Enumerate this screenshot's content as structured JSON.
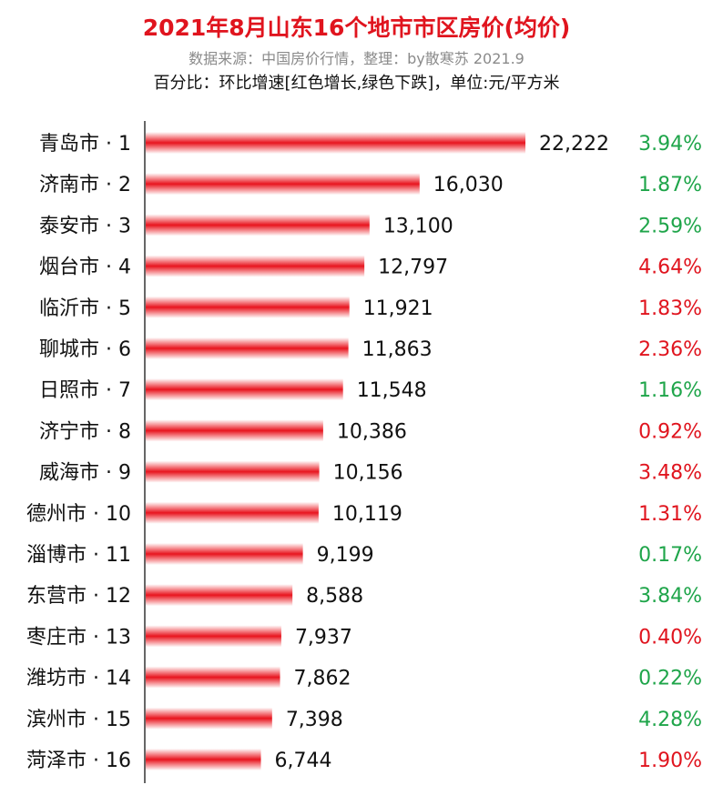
{
  "header": {
    "title": "2021年8月山东16个地市市区房价(均价)",
    "source": "数据来源：中国房价行情，整理：by散寒苏 2021.9",
    "note": "百分比：环比增速[红色增长,绿色下跌]，单位:元/平方米"
  },
  "colors": {
    "title": "#e0141e",
    "bar": "#e8141e",
    "increase": "#e0141e",
    "decrease": "#1fa54a"
  },
  "chart_data": {
    "type": "bar",
    "orientation": "horizontal",
    "categories": [
      "青岛市 · 1",
      "济南市 · 2",
      "泰安市 · 3",
      "烟台市 · 4",
      "临沂市 · 5",
      "聊城市 · 6",
      "日照市 · 7",
      "济宁市 · 8",
      "威海市 · 9",
      "德州市 · 10",
      "淄博市 · 11",
      "东营市 · 12",
      "枣庄市 · 13",
      "潍坊市 · 14",
      "滨州市 · 15",
      "菏泽市 · 16"
    ],
    "values": [
      22222,
      16030,
      13100,
      12797,
      11921,
      11863,
      11548,
      10386,
      10156,
      10119,
      9199,
      8588,
      7937,
      7862,
      7398,
      6744
    ],
    "value_labels": [
      "22,222",
      "16,030",
      "13,100",
      "12,797",
      "11,921",
      "11,863",
      "11,548",
      "10,386",
      "10,156",
      "10,119",
      "9,199",
      "8,588",
      "7,937",
      "7,862",
      "7,398",
      "6,744"
    ],
    "pct_labels": [
      "3.94%",
      "1.87%",
      "2.59%",
      "4.64%",
      "1.83%",
      "2.36%",
      "1.16%",
      "0.92%",
      "3.48%",
      "1.31%",
      "0.17%",
      "3.84%",
      "0.40%",
      "0.22%",
      "4.28%",
      "1.90%"
    ],
    "pct_direction": [
      "down",
      "down",
      "down",
      "up",
      "up",
      "up",
      "down",
      "up",
      "up",
      "up",
      "down",
      "down",
      "up",
      "down",
      "down",
      "up"
    ],
    "xlim": [
      0,
      22222
    ],
    "grid": false,
    "legend": "none"
  }
}
